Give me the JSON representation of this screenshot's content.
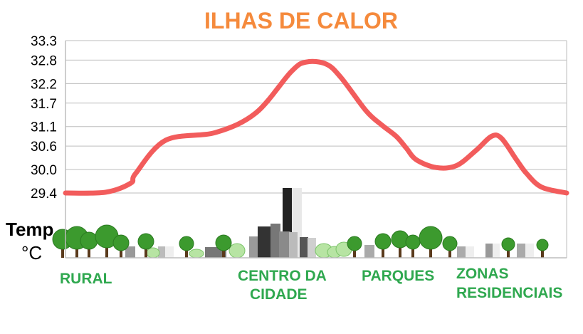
{
  "chart_data": {
    "type": "line",
    "title": "ILHAS DE CALOR",
    "ylabel_line1": "Temp",
    "ylabel_line2": "°C",
    "yticks": [
      "33.3",
      "32.8",
      "32.2",
      "31.7",
      "31.1",
      "30.6",
      "30.0",
      "29.4"
    ],
    "ylim": [
      29.4,
      33.3
    ],
    "x": [
      0,
      8,
      13,
      14,
      20,
      30,
      38,
      45,
      48,
      52,
      55,
      60,
      63,
      66,
      68,
      70,
      74,
      78,
      82,
      85,
      87,
      90,
      92,
      95,
      100
    ],
    "series": [
      {
        "values": [
          29.4,
          29.42,
          29.65,
          29.9,
          30.75,
          30.95,
          31.45,
          32.5,
          32.75,
          32.7,
          32.35,
          31.5,
          31.15,
          30.85,
          30.55,
          30.25,
          30.05,
          30.1,
          30.5,
          30.85,
          30.8,
          30.25,
          29.9,
          29.55,
          29.4
        ]
      }
    ],
    "categories": [
      "RURAL",
      "CENTRO DA CIDADE",
      "PARQUES",
      "ZONAS RESIDENCIAIS"
    ],
    "grid": true
  },
  "colors": {
    "title": "#f58a3c",
    "line": "#f25c5c",
    "category": "#2fa84f",
    "grid": "#bdbdbd"
  }
}
